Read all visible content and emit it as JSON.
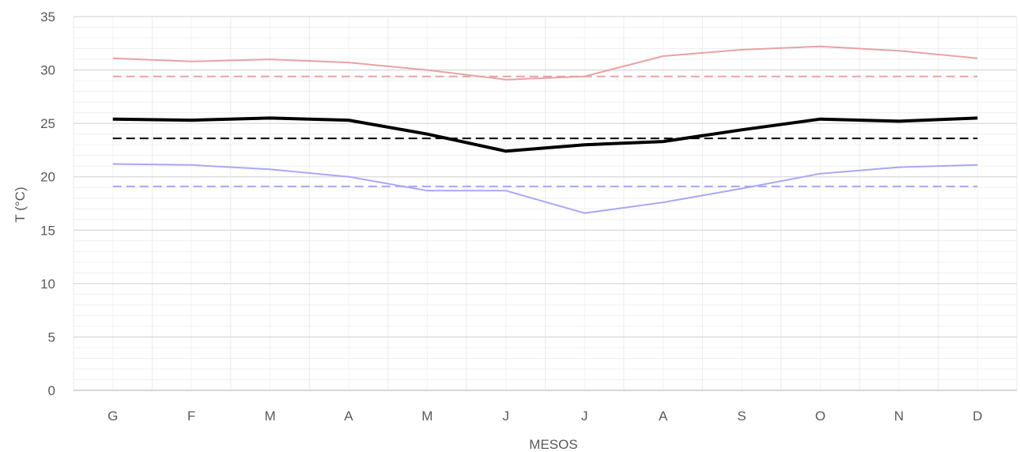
{
  "chart_data": {
    "type": "line",
    "categories": [
      "G",
      "F",
      "M",
      "A",
      "M",
      "J",
      "J",
      "A",
      "S",
      "O",
      "N",
      "D"
    ],
    "xlabel": "MESOS",
    "ylabel": "T (°C)",
    "ylim": [
      0,
      35
    ],
    "yticks": [
      0,
      5,
      10,
      15,
      20,
      25,
      30,
      35
    ],
    "grid": true,
    "legend": "none",
    "series": [
      {
        "values": [
          31.1,
          30.8,
          31.0,
          30.7,
          30.0,
          29.1,
          29.4,
          31.3,
          31.9,
          32.2,
          31.8,
          31.1
        ],
        "color": "#e8a3a3",
        "style": "solid",
        "width": 2
      },
      {
        "values": [
          29.4,
          29.4,
          29.4,
          29.4,
          29.4,
          29.4,
          29.4,
          29.4,
          29.4,
          29.4,
          29.4,
          29.4
        ],
        "color": "#e8a3a3",
        "style": "dashed",
        "width": 2
      },
      {
        "values": [
          25.4,
          25.3,
          25.5,
          25.3,
          24.0,
          22.4,
          23.0,
          23.3,
          24.4,
          25.4,
          25.2,
          25.5
        ],
        "color": "#000000",
        "style": "solid",
        "width": 4
      },
      {
        "values": [
          23.6,
          23.6,
          23.6,
          23.6,
          23.6,
          23.6,
          23.6,
          23.6,
          23.6,
          23.6,
          23.6,
          23.6
        ],
        "color": "#000000",
        "style": "dashed",
        "width": 2
      },
      {
        "values": [
          21.2,
          21.1,
          20.7,
          20.0,
          18.7,
          18.7,
          16.6,
          17.6,
          18.9,
          20.3,
          20.9,
          21.1
        ],
        "color": "#a8a8f5",
        "style": "solid",
        "width": 2
      },
      {
        "values": [
          19.1,
          19.1,
          19.1,
          19.1,
          19.1,
          19.1,
          19.1,
          19.1,
          19.1,
          19.1,
          19.1,
          19.1
        ],
        "color": "#a8a8f5",
        "style": "dashed",
        "width": 2
      }
    ]
  }
}
